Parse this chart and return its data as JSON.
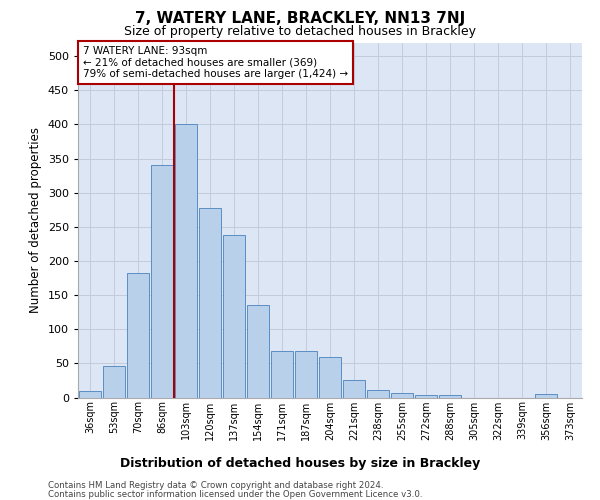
{
  "title": "7, WATERY LANE, BRACKLEY, NN13 7NJ",
  "subtitle": "Size of property relative to detached houses in Brackley",
  "xlabel_bottom": "Distribution of detached houses by size in Brackley",
  "ylabel": "Number of detached properties",
  "footer_line1": "Contains HM Land Registry data © Crown copyright and database right 2024.",
  "footer_line2": "Contains public sector information licensed under the Open Government Licence v3.0.",
  "bar_categories": [
    "36sqm",
    "53sqm",
    "70sqm",
    "86sqm",
    "103sqm",
    "120sqm",
    "137sqm",
    "154sqm",
    "171sqm",
    "187sqm",
    "204sqm",
    "221sqm",
    "238sqm",
    "255sqm",
    "272sqm",
    "288sqm",
    "305sqm",
    "322sqm",
    "339sqm",
    "356sqm",
    "373sqm"
  ],
  "bar_values": [
    10,
    46,
    182,
    340,
    400,
    278,
    238,
    135,
    68,
    68,
    60,
    25,
    11,
    6,
    4,
    3,
    0,
    0,
    0,
    5,
    0
  ],
  "bar_color": "#b8d0ea",
  "bar_edge_color": "#5b8ec4",
  "plot_bg_color": "#dce6f5",
  "background_color": "#ffffff",
  "grid_color": "#c0c8d8",
  "annotation_box_text": "7 WATERY LANE: 93sqm\n← 21% of detached houses are smaller (369)\n79% of semi-detached houses are larger (1,424) →",
  "annotation_box_color": "#ffffff",
  "annotation_box_edge_color": "#aa0000",
  "red_line_x": 3.5,
  "ylim": [
    0,
    520
  ],
  "yticks": [
    0,
    50,
    100,
    150,
    200,
    250,
    300,
    350,
    400,
    450,
    500
  ]
}
